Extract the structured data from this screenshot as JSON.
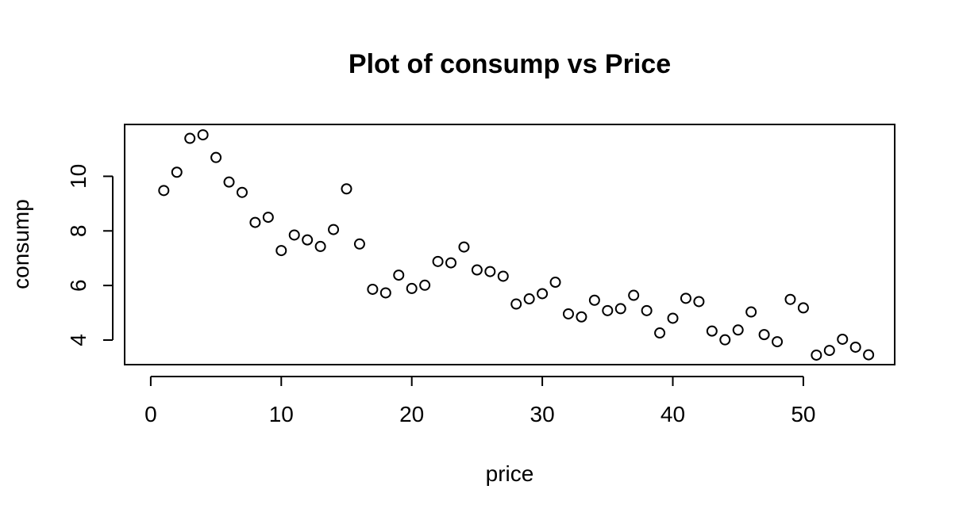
{
  "chart_data": {
    "type": "scatter",
    "title": "Plot of consump vs Price",
    "xlabel": "price",
    "ylabel": "consump",
    "xlim": [
      -2,
      57
    ],
    "ylim": [
      3.1,
      11.9
    ],
    "xticks": [
      0,
      10,
      20,
      30,
      40,
      50
    ],
    "yticks": [
      4,
      6,
      8,
      10
    ],
    "x": [
      1,
      2,
      3,
      4,
      5,
      6,
      7,
      8,
      9,
      10,
      11,
      12,
      13,
      14,
      15,
      16,
      17,
      18,
      19,
      20,
      21,
      22,
      23,
      24,
      25,
      26,
      27,
      28,
      29,
      30,
      31,
      32,
      33,
      34,
      35,
      36,
      37,
      38,
      39,
      40,
      41,
      42,
      43,
      44,
      45,
      46,
      47,
      48,
      49,
      50,
      51,
      52,
      53,
      54,
      55
    ],
    "y": [
      9.48,
      10.15,
      11.39,
      11.52,
      10.69,
      9.79,
      9.41,
      8.31,
      8.5,
      7.28,
      7.85,
      7.67,
      7.43,
      8.05,
      9.54,
      7.52,
      5.86,
      5.73,
      6.38,
      5.89,
      6.01,
      6.88,
      6.83,
      7.41,
      6.57,
      6.51,
      6.34,
      5.32,
      5.51,
      5.7,
      6.12,
      4.96,
      4.85,
      5.46,
      5.08,
      5.15,
      5.64,
      5.08,
      4.26,
      4.8,
      5.53,
      5.41,
      4.33,
      4.01,
      4.37,
      5.03,
      4.2,
      3.94,
      5.49,
      5.18,
      3.45,
      3.62,
      4.03,
      3.74,
      3.46
    ],
    "grid": false,
    "marker": "open-circle",
    "colors": {
      "points": "#000000",
      "axes": "#000000",
      "background": "#ffffff"
    }
  }
}
